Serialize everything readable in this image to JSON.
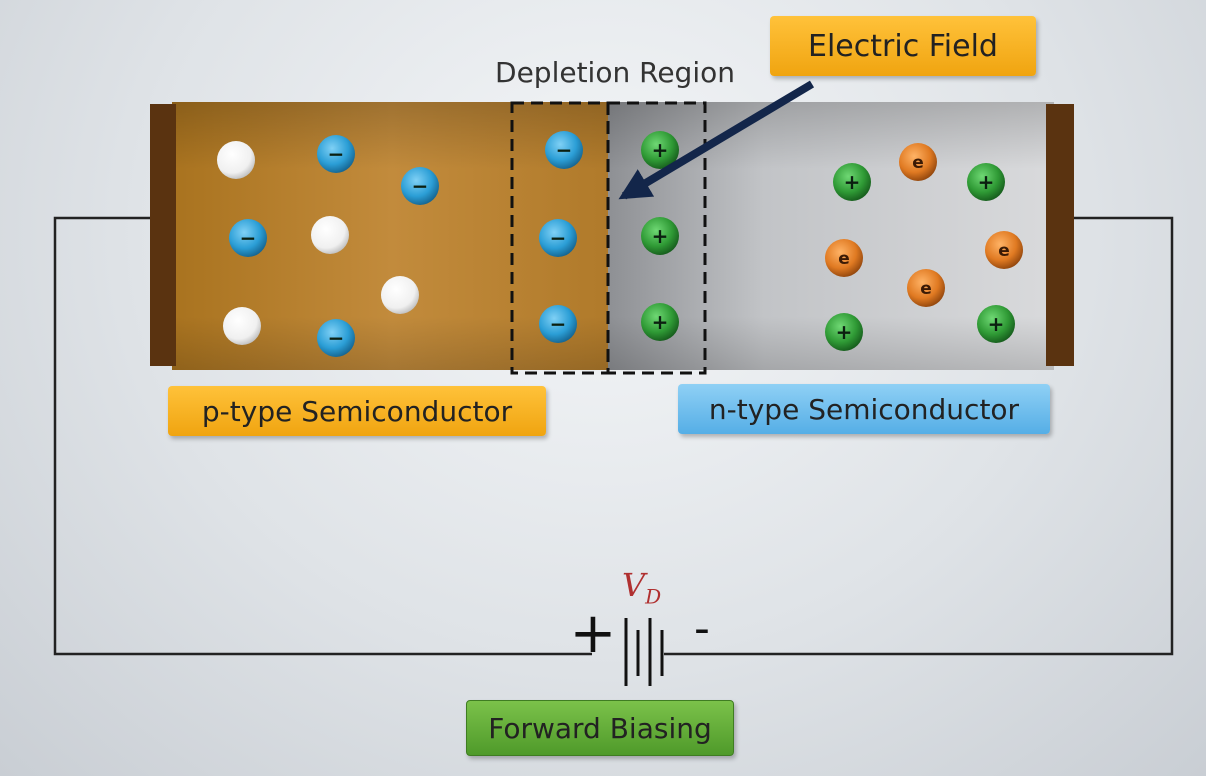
{
  "labels": {
    "depletion_region": "Depletion Region",
    "electric_field": "Electric Field",
    "p_type": "p-type Semiconductor",
    "n_type": "n-type Semiconductor",
    "forward_biasing": "Forward Biasing",
    "vd_main": "V",
    "vd_sub": "D",
    "plus_sign": "+",
    "minus_sign": "-"
  },
  "carriers": {
    "negative_ion_symbol": "−",
    "positive_ion_symbol": "+",
    "electron_symbol": "e"
  },
  "colors": {
    "p_region": "#b9822e",
    "n_region": "#b8babd",
    "electrode": "#5a3310",
    "wire": "#222222",
    "hole": "#ffffff",
    "negative_ion": "#2b9ed6",
    "positive_ion": "#2f9a35",
    "electron": "#e07a22",
    "vd_text": "#b03030",
    "p_label_bg": "#f6b223",
    "n_label_bg": "#6cbdec",
    "field_label_bg": "#f6b223",
    "bias_label_bg": "#5fae34"
  }
}
